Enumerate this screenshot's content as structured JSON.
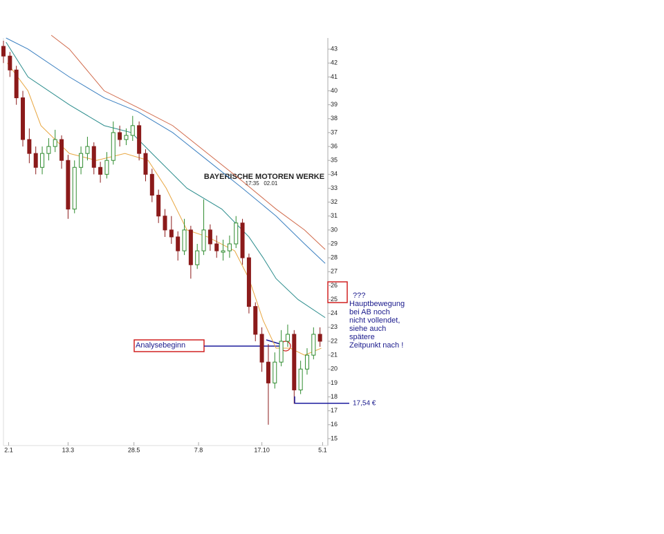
{
  "chart_data": {
    "type": "candlestick",
    "title": "BAYERISCHE MOTOREN WERKE",
    "subtitle": "17:35   02.01",
    "x": [
      0,
      5,
      10,
      15,
      20,
      25,
      30,
      35,
      40,
      45,
      50,
      55,
      60,
      65,
      70,
      75,
      80,
      85,
      90,
      95,
      100,
      105,
      110,
      115,
      120,
      125,
      130,
      135,
      140,
      145,
      150,
      155,
      160,
      165,
      170,
      175,
      180,
      185,
      190,
      195,
      200,
      205,
      210,
      215,
      220,
      225,
      230,
      235,
      240,
      245
    ],
    "open": [
      43.2,
      42.5,
      41.5,
      39.5,
      36.5,
      35.5,
      34.5,
      35.5,
      36.0,
      36.5,
      35.0,
      31.5,
      34.5,
      35.5,
      36.0,
      34.5,
      34.0,
      35.0,
      37.0,
      36.5,
      36.8,
      37.5,
      35.5,
      34.0,
      32.5,
      31.0,
      30.0,
      29.5,
      28.5,
      30.0,
      27.5,
      28.5,
      30.0,
      29.0,
      28.4,
      28.5,
      29.0,
      30.5,
      28.0,
      24.5,
      22.5,
      20.5,
      19.0,
      20.5,
      22.0,
      22.5,
      18.5,
      20.0,
      21.0,
      22.5
    ],
    "high": [
      43.6,
      42.8,
      41.8,
      40.0,
      37.3,
      36.0,
      36.0,
      36.6,
      37.2,
      36.8,
      35.4,
      35.0,
      36.0,
      36.7,
      36.3,
      34.9,
      35.6,
      37.8,
      37.5,
      37.3,
      38.2,
      37.8,
      35.8,
      34.4,
      32.9,
      31.5,
      31.0,
      29.9,
      30.8,
      30.3,
      29.0,
      32.2,
      30.4,
      29.6,
      29.3,
      29.6,
      31.0,
      30.8,
      28.3,
      24.8,
      23.0,
      21.8,
      21.2,
      22.8,
      23.2,
      22.8,
      20.6,
      21.5,
      23.0,
      23.0
    ],
    "low": [
      42.0,
      41.0,
      39.0,
      36.0,
      34.8,
      34.0,
      34.0,
      35.0,
      35.6,
      34.4,
      30.8,
      31.2,
      34.0,
      35.0,
      34.0,
      33.4,
      33.7,
      34.7,
      36.0,
      36.1,
      36.4,
      35.0,
      33.5,
      32.0,
      30.5,
      29.5,
      29.0,
      27.8,
      28.2,
      26.5,
      27.2,
      28.2,
      28.5,
      28.0,
      27.8,
      28.0,
      28.7,
      27.5,
      24.0,
      22.0,
      19.8,
      16.0,
      18.6,
      20.2,
      21.6,
      17.5,
      18.2,
      19.6,
      20.7,
      21.6
    ],
    "close": [
      42.5,
      41.5,
      39.5,
      36.5,
      35.5,
      34.5,
      35.5,
      36.0,
      36.5,
      35.0,
      31.5,
      34.5,
      35.5,
      36.0,
      34.5,
      34.0,
      35.0,
      37.0,
      36.5,
      36.8,
      37.5,
      35.5,
      34.0,
      32.5,
      31.0,
      30.0,
      29.5,
      28.5,
      30.0,
      27.5,
      28.5,
      30.0,
      29.0,
      28.5,
      28.5,
      29.0,
      30.5,
      28.0,
      24.5,
      22.5,
      20.5,
      19.0,
      20.5,
      22.0,
      22.5,
      18.5,
      20.0,
      21.0,
      22.5,
      22.0
    ],
    "up_color": "#2e8b2e",
    "down_color": "#8b1a1a",
    "series": [
      {
        "color": "#e8a640",
        "x": [
          3,
          19,
          29,
          51,
          72,
          94,
          112,
          126,
          142,
          158,
          179,
          190,
          201,
          211,
          222,
          233,
          246
        ],
        "values": [
          42,
          40,
          37.5,
          35.5,
          35,
          35.5,
          35,
          33,
          30,
          29.5,
          28.5,
          26.5,
          23.5,
          21.5,
          21.5,
          21,
          21.5
        ]
      },
      {
        "color": "#2a8c8c",
        "x": [
          2,
          19,
          51,
          78,
          99,
          115,
          142,
          169,
          190,
          201,
          211,
          228,
          249
        ],
        "values": [
          43.5,
          41,
          39,
          37.5,
          37,
          35.5,
          33,
          31.5,
          29.5,
          28,
          26.5,
          25,
          23.7
        ]
      },
      {
        "color": "#3a7fc0",
        "x": [
          2,
          19,
          51,
          78,
          104,
          131,
          158,
          185,
          211,
          233,
          249
        ],
        "values": [
          43.8,
          43,
          41,
          39.5,
          38.5,
          37,
          35,
          33,
          31,
          29,
          27.6
        ]
      },
      {
        "color": "#d0694a",
        "x": [
          37,
          51,
          78,
          104,
          131,
          158,
          185,
          211,
          233,
          249
        ],
        "values": [
          44,
          43,
          40,
          38.8,
          37.5,
          35.5,
          33.5,
          31.5,
          30,
          28.6
        ]
      }
    ],
    "xlim": [
      0,
      250
    ],
    "xticks": [
      {
        "value": 4,
        "label": "2.1"
      },
      {
        "value": 50,
        "label": "13.3"
      },
      {
        "value": 101,
        "label": "28.5"
      },
      {
        "value": 151,
        "label": "7.8"
      },
      {
        "value": 200,
        "label": "17.10"
      },
      {
        "value": 247,
        "label": "5.1"
      }
    ],
    "ylim": [
      14.5,
      43.8
    ],
    "yticks": [
      15,
      16,
      17,
      18,
      19,
      20,
      21,
      22,
      23,
      24,
      25,
      26,
      27,
      28,
      29,
      30,
      31,
      32,
      33,
      34,
      35,
      36,
      37,
      38,
      39,
      40,
      41,
      42,
      43
    ],
    "annotations": {
      "start": "Analysebeginn",
      "question": "???",
      "note": [
        "Hauptbewegung",
        "bei AB noch",
        "nicht vollendet,",
        "siehe auch",
        "spätere",
        "Zeitpunkt nach !"
      ],
      "level": {
        "value": 17.54,
        "label": "17,54 €"
      }
    }
  }
}
